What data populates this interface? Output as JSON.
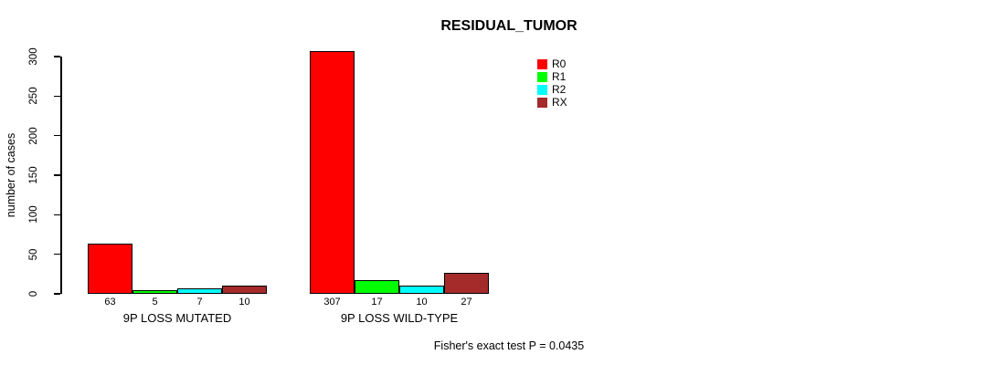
{
  "title": "RESIDUAL_TUMOR",
  "footer_note": "Fisher's exact test P = 0.0435",
  "chart_data": {
    "type": "bar",
    "title": "RESIDUAL_TUMOR",
    "xlabel": "",
    "ylabel": "number of cases",
    "ylim": [
      0,
      300
    ],
    "yticks": [
      0,
      50,
      100,
      150,
      200,
      250,
      300
    ],
    "grid": false,
    "legend_position": "top-right",
    "bar_value_labels_shown": true,
    "categories": [
      "9P LOSS MUTATED",
      "9P LOSS WILD-TYPE"
    ],
    "series": [
      {
        "name": "R0",
        "color": "#FF0000",
        "values": [
          63,
          307
        ]
      },
      {
        "name": "R1",
        "color": "#00FF00",
        "values": [
          5,
          17
        ]
      },
      {
        "name": "R2",
        "color": "#00FFFF",
        "values": [
          7,
          10
        ]
      },
      {
        "name": "RX",
        "color": "#A52A2A",
        "values": [
          10,
          27
        ]
      }
    ],
    "annotation": "Fisher's exact test P = 0.0435"
  }
}
